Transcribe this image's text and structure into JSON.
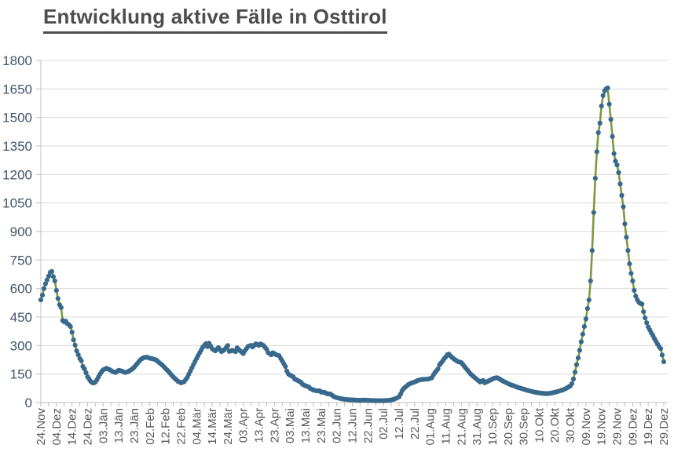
{
  "title": "Entwicklung aktive Fälle in Osttirol",
  "colors": {
    "title": "#4d4d4d",
    "axis_label": "#44546a",
    "x_axis_label": "#595959",
    "gridline": "#d9d9d9",
    "axis_line": "#bfbfbf",
    "line": "#7c9a3f",
    "marker": "#38698c"
  },
  "chart_data": {
    "type": "line",
    "title": "Entwicklung aktive Fälle in Osttirol",
    "legend": "none",
    "grid": "horizontal",
    "x_axis": {
      "unit": "date",
      "tick_interval_days": 10,
      "minor_tick_interval_days": 5,
      "total_days": 400,
      "tick_labels": [
        "24.Nov",
        "04.Dez",
        "14.Dez",
        "24.Dez",
        "03.Jän",
        "13.Jän",
        "23.Jän",
        "02.Feb",
        "12.Feb",
        "22.Feb",
        "04.Mär",
        "14.Mär",
        "24.Mär",
        "03.Apr",
        "13.Apr",
        "23.Apr",
        "03.Mai",
        "13.Mai",
        "23.Mai",
        "02.Jun",
        "12.Jun",
        "22.Jun",
        "02.Jul",
        "12.Jul",
        "22.Jul",
        "01.Aug",
        "11.Aug",
        "21.Aug",
        "31.Aug",
        "10.Sep",
        "20.Sep",
        "30.Sep",
        "10.Okt",
        "20.Okt",
        "30.Okt",
        "09.Nov",
        "19.Nov",
        "29.Nov",
        "09.Dez",
        "19.Dez",
        "29.Dez"
      ]
    },
    "y_axis": {
      "min": 0,
      "max": 1800,
      "tick_step": 150,
      "tick_labels": [
        0,
        150,
        300,
        450,
        600,
        750,
        900,
        1050,
        1200,
        1350,
        1500,
        1650,
        1800
      ]
    },
    "series": [
      {
        "marker_color": "#38698c",
        "line_color": "#7c9a3f",
        "sampling": "daily values, read as [day_offset_from_24.Nov, active_cases] control points",
        "points": [
          [
            0,
            540
          ],
          [
            1,
            565
          ],
          [
            2,
            600
          ],
          [
            3,
            625
          ],
          [
            4,
            645
          ],
          [
            5,
            665
          ],
          [
            6,
            685
          ],
          [
            7,
            690
          ],
          [
            8,
            662
          ],
          [
            9,
            640
          ],
          [
            10,
            590
          ],
          [
            11,
            548
          ],
          [
            12,
            515
          ],
          [
            13,
            500
          ],
          [
            14,
            432
          ],
          [
            15,
            425
          ],
          [
            16,
            428
          ],
          [
            17,
            415
          ],
          [
            18,
            410
          ],
          [
            19,
            400
          ],
          [
            20,
            370
          ],
          [
            21,
            330
          ],
          [
            22,
            302
          ],
          [
            23,
            272
          ],
          [
            24,
            252
          ],
          [
            25,
            232
          ],
          [
            26,
            220
          ],
          [
            27,
            190
          ],
          [
            28,
            177
          ],
          [
            29,
            157
          ],
          [
            30,
            136
          ],
          [
            31,
            124
          ],
          [
            32,
            112
          ],
          [
            33,
            105
          ],
          [
            34,
            103
          ],
          [
            35,
            108
          ],
          [
            36,
            120
          ],
          [
            37,
            135
          ],
          [
            38,
            150
          ],
          [
            39,
            162
          ],
          [
            40,
            172
          ],
          [
            42,
            180
          ],
          [
            44,
            174
          ],
          [
            46,
            164
          ],
          [
            48,
            158
          ],
          [
            50,
            170
          ],
          [
            52,
            166
          ],
          [
            54,
            158
          ],
          [
            56,
            163
          ],
          [
            58,
            172
          ],
          [
            60,
            186
          ],
          [
            62,
            206
          ],
          [
            64,
            226
          ],
          [
            66,
            236
          ],
          [
            68,
            239
          ],
          [
            70,
            233
          ],
          [
            72,
            230
          ],
          [
            74,
            224
          ],
          [
            76,
            210
          ],
          [
            78,
            197
          ],
          [
            80,
            180
          ],
          [
            82,
            163
          ],
          [
            84,
            144
          ],
          [
            86,
            127
          ],
          [
            88,
            112
          ],
          [
            90,
            104
          ],
          [
            92,
            110
          ],
          [
            94,
            132
          ],
          [
            96,
            166
          ],
          [
            98,
            200
          ],
          [
            100,
            232
          ],
          [
            102,
            262
          ],
          [
            104,
            292
          ],
          [
            106,
            310
          ],
          [
            107,
            294
          ],
          [
            108,
            312
          ],
          [
            110,
            283
          ],
          [
            112,
            272
          ],
          [
            114,
            289
          ],
          [
            116,
            268
          ],
          [
            118,
            279
          ],
          [
            120,
            300
          ],
          [
            121,
            269
          ],
          [
            123,
            275
          ],
          [
            125,
            268
          ],
          [
            126,
            288
          ],
          [
            128,
            272
          ],
          [
            130,
            258
          ],
          [
            131,
            272
          ],
          [
            133,
            295
          ],
          [
            135,
            301
          ],
          [
            136,
            293
          ],
          [
            138,
            309
          ],
          [
            140,
            301
          ],
          [
            141,
            309
          ],
          [
            143,
            300
          ],
          [
            145,
            280
          ],
          [
            146,
            262
          ],
          [
            148,
            252
          ],
          [
            149,
            262
          ],
          [
            151,
            252
          ],
          [
            153,
            247
          ],
          [
            154,
            232
          ],
          [
            155,
            219
          ],
          [
            157,
            190
          ],
          [
            158,
            165
          ],
          [
            159,
            150
          ],
          [
            160,
            144
          ],
          [
            162,
            136
          ],
          [
            163,
            124
          ],
          [
            165,
            116
          ],
          [
            167,
            107
          ],
          [
            168,
            96
          ],
          [
            170,
            88
          ],
          [
            172,
            82
          ],
          [
            173,
            74
          ],
          [
            175,
            66
          ],
          [
            177,
            62
          ],
          [
            179,
            62
          ],
          [
            180,
            55
          ],
          [
            182,
            54
          ],
          [
            184,
            46
          ],
          [
            186,
            45
          ],
          [
            188,
            32
          ],
          [
            190,
            26
          ],
          [
            193,
            20
          ],
          [
            196,
            16
          ],
          [
            200,
            14
          ],
          [
            204,
            12
          ],
          [
            208,
            13
          ],
          [
            212,
            11
          ],
          [
            216,
            10
          ],
          [
            220,
            10
          ],
          [
            224,
            12
          ],
          [
            227,
            18
          ],
          [
            230,
            30
          ],
          [
            231,
            45
          ],
          [
            232,
            62
          ],
          [
            233,
            74
          ],
          [
            235,
            88
          ],
          [
            236,
            95
          ],
          [
            238,
            103
          ],
          [
            240,
            108
          ],
          [
            242,
            116
          ],
          [
            244,
            121
          ],
          [
            247,
            123
          ],
          [
            249,
            124
          ],
          [
            251,
            130
          ],
          [
            252,
            144
          ],
          [
            253,
            157
          ],
          [
            255,
            177
          ],
          [
            256,
            198
          ],
          [
            258,
            219
          ],
          [
            259,
            231
          ],
          [
            260,
            240
          ],
          [
            261,
            252
          ],
          [
            262,
            255
          ],
          [
            263,
            246
          ],
          [
            264,
            238
          ],
          [
            266,
            225
          ],
          [
            268,
            215
          ],
          [
            270,
            210
          ],
          [
            272,
            190
          ],
          [
            274,
            170
          ],
          [
            276,
            150
          ],
          [
            278,
            136
          ],
          [
            280,
            122
          ],
          [
            282,
            108
          ],
          [
            284,
            116
          ],
          [
            285,
            104
          ],
          [
            287,
            112
          ],
          [
            289,
            120
          ],
          [
            291,
            128
          ],
          [
            293,
            131
          ],
          [
            295,
            122
          ],
          [
            297,
            112
          ],
          [
            299,
            104
          ],
          [
            301,
            96
          ],
          [
            303,
            90
          ],
          [
            305,
            84
          ],
          [
            307,
            78
          ],
          [
            309,
            73
          ],
          [
            311,
            68
          ],
          [
            313,
            63
          ],
          [
            315,
            59
          ],
          [
            317,
            55
          ],
          [
            319,
            52
          ],
          [
            321,
            50
          ],
          [
            323,
            48
          ],
          [
            325,
            47
          ],
          [
            327,
            49
          ],
          [
            329,
            52
          ],
          [
            331,
            56
          ],
          [
            333,
            61
          ],
          [
            335,
            66
          ],
          [
            337,
            73
          ],
          [
            339,
            83
          ],
          [
            340,
            88
          ],
          [
            341,
            100
          ],
          [
            342,
            124
          ],
          [
            343,
            160
          ],
          [
            344,
            200
          ],
          [
            345,
            235
          ],
          [
            346,
            275
          ],
          [
            347,
            320
          ],
          [
            348,
            360
          ],
          [
            349,
            400
          ],
          [
            350,
            440
          ],
          [
            351,
            495
          ],
          [
            352,
            540
          ],
          [
            353,
            640
          ],
          [
            354,
            800
          ],
          [
            355,
            1000
          ],
          [
            356,
            1180
          ],
          [
            357,
            1320
          ],
          [
            358,
            1420
          ],
          [
            359,
            1470
          ],
          [
            360,
            1560
          ],
          [
            361,
            1615
          ],
          [
            362,
            1640
          ],
          [
            363,
            1650
          ],
          [
            364,
            1655
          ],
          [
            365,
            1570
          ],
          [
            366,
            1490
          ],
          [
            367,
            1400
          ],
          [
            368,
            1310
          ],
          [
            369,
            1270
          ],
          [
            370,
            1250
          ],
          [
            371,
            1210
          ],
          [
            372,
            1150
          ],
          [
            373,
            1090
          ],
          [
            374,
            1030
          ],
          [
            375,
            940
          ],
          [
            376,
            870
          ],
          [
            377,
            800
          ],
          [
            378,
            730
          ],
          [
            379,
            680
          ],
          [
            380,
            640
          ],
          [
            381,
            590
          ],
          [
            382,
            560
          ],
          [
            383,
            540
          ],
          [
            384,
            527
          ],
          [
            385,
            521
          ],
          [
            386,
            518
          ],
          [
            387,
            478
          ],
          [
            388,
            445
          ],
          [
            389,
            420
          ],
          [
            390,
            398
          ],
          [
            391,
            382
          ],
          [
            392,
            366
          ],
          [
            393,
            353
          ],
          [
            394,
            337
          ],
          [
            395,
            322
          ],
          [
            396,
            307
          ],
          [
            397,
            294
          ],
          [
            398,
            284
          ],
          [
            399,
            250
          ],
          [
            400,
            215
          ]
        ]
      }
    ]
  }
}
